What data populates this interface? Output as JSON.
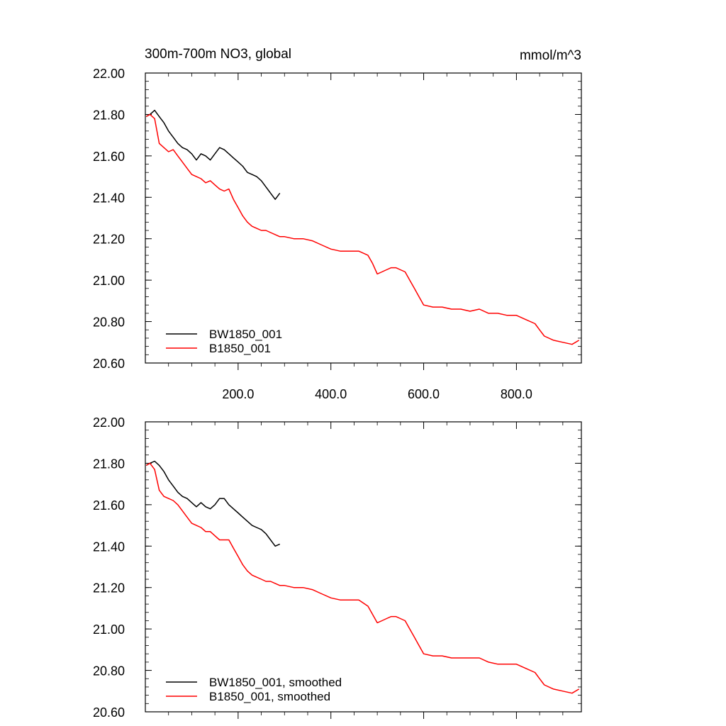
{
  "chart_data": [
    {
      "type": "line",
      "title_left": "300m-700m NO3, global",
      "title_right": "mmol/m^3",
      "xlim": [
        0,
        940
      ],
      "ylim": [
        20.6,
        22.0
      ],
      "yticks": [
        20.6,
        20.8,
        21.0,
        21.2,
        21.4,
        21.6,
        21.8,
        22.0
      ],
      "ytick_labels": [
        "20.60",
        "20.80",
        "21.00",
        "21.20",
        "21.40",
        "21.60",
        "21.80",
        "22.00"
      ],
      "xticks": [
        200,
        400,
        600,
        800
      ],
      "xtick_labels": [
        "200.0",
        "400.0",
        "600.0",
        "800.0"
      ],
      "series": [
        {
          "name": "BW1850_001",
          "color": "#000000",
          "points": [
            [
              2,
              21.79
            ],
            [
              10,
              21.8
            ],
            [
              20,
              21.82
            ],
            [
              30,
              21.79
            ],
            [
              40,
              21.76
            ],
            [
              50,
              21.72
            ],
            [
              60,
              21.69
            ],
            [
              70,
              21.66
            ],
            [
              80,
              21.64
            ],
            [
              90,
              21.63
            ],
            [
              100,
              21.61
            ],
            [
              110,
              21.58
            ],
            [
              120,
              21.61
            ],
            [
              130,
              21.6
            ],
            [
              140,
              21.58
            ],
            [
              150,
              21.61
            ],
            [
              160,
              21.64
            ],
            [
              170,
              21.63
            ],
            [
              180,
              21.61
            ],
            [
              190,
              21.59
            ],
            [
              200,
              21.57
            ],
            [
              210,
              21.55
            ],
            [
              220,
              21.52
            ],
            [
              230,
              21.51
            ],
            [
              240,
              21.5
            ],
            [
              250,
              21.48
            ],
            [
              260,
              21.45
            ],
            [
              270,
              21.42
            ],
            [
              280,
              21.39
            ],
            [
              290,
              21.42
            ]
          ]
        },
        {
          "name": "B1850_001",
          "color": "#ff0000",
          "points": [
            [
              2,
              21.79
            ],
            [
              10,
              21.8
            ],
            [
              20,
              21.78
            ],
            [
              30,
              21.66
            ],
            [
              40,
              21.64
            ],
            [
              50,
              21.62
            ],
            [
              60,
              21.63
            ],
            [
              70,
              21.6
            ],
            [
              80,
              21.57
            ],
            [
              90,
              21.54
            ],
            [
              100,
              21.51
            ],
            [
              110,
              21.5
            ],
            [
              120,
              21.49
            ],
            [
              130,
              21.47
            ],
            [
              140,
              21.48
            ],
            [
              150,
              21.46
            ],
            [
              160,
              21.44
            ],
            [
              170,
              21.43
            ],
            [
              180,
              21.44
            ],
            [
              190,
              21.39
            ],
            [
              200,
              21.35
            ],
            [
              210,
              21.31
            ],
            [
              220,
              21.28
            ],
            [
              230,
              21.26
            ],
            [
              240,
              21.25
            ],
            [
              250,
              21.24
            ],
            [
              260,
              21.24
            ],
            [
              270,
              21.23
            ],
            [
              280,
              21.22
            ],
            [
              290,
              21.21
            ],
            [
              300,
              21.21
            ],
            [
              320,
              21.2
            ],
            [
              340,
              21.2
            ],
            [
              360,
              21.19
            ],
            [
              380,
              21.17
            ],
            [
              400,
              21.15
            ],
            [
              420,
              21.14
            ],
            [
              440,
              21.14
            ],
            [
              460,
              21.14
            ],
            [
              480,
              21.12
            ],
            [
              490,
              21.08
            ],
            [
              500,
              21.03
            ],
            [
              510,
              21.04
            ],
            [
              520,
              21.05
            ],
            [
              530,
              21.06
            ],
            [
              540,
              21.06
            ],
            [
              550,
              21.05
            ],
            [
              560,
              21.04
            ],
            [
              570,
              21.0
            ],
            [
              580,
              20.96
            ],
            [
              590,
              20.92
            ],
            [
              600,
              20.88
            ],
            [
              620,
              20.87
            ],
            [
              640,
              20.87
            ],
            [
              660,
              20.86
            ],
            [
              680,
              20.86
            ],
            [
              700,
              20.85
            ],
            [
              720,
              20.86
            ],
            [
              740,
              20.84
            ],
            [
              760,
              20.84
            ],
            [
              780,
              20.83
            ],
            [
              800,
              20.83
            ],
            [
              820,
              20.81
            ],
            [
              840,
              20.79
            ],
            [
              850,
              20.76
            ],
            [
              860,
              20.73
            ],
            [
              880,
              20.71
            ],
            [
              900,
              20.7
            ],
            [
              920,
              20.69
            ],
            [
              935,
              20.71
            ]
          ]
        }
      ],
      "legend": [
        "BW1850_001",
        "B1850_001"
      ]
    },
    {
      "type": "line",
      "title_left": "",
      "title_right": "",
      "xlim": [
        0,
        940
      ],
      "ylim": [
        20.6,
        22.0
      ],
      "yticks": [
        20.6,
        20.8,
        21.0,
        21.2,
        21.4,
        21.6,
        21.8,
        22.0
      ],
      "ytick_labels": [
        "20.60",
        "20.80",
        "21.00",
        "21.20",
        "21.40",
        "21.60",
        "21.80",
        "22.00"
      ],
      "xticks": [
        200,
        400,
        600,
        800
      ],
      "xtick_labels": [],
      "series": [
        {
          "name": "BW1850_001, smoothed",
          "color": "#000000",
          "points": [
            [
              2,
              21.79
            ],
            [
              10,
              21.8
            ],
            [
              20,
              21.81
            ],
            [
              30,
              21.79
            ],
            [
              40,
              21.76
            ],
            [
              50,
              21.72
            ],
            [
              60,
              21.69
            ],
            [
              70,
              21.66
            ],
            [
              80,
              21.64
            ],
            [
              90,
              21.63
            ],
            [
              100,
              21.61
            ],
            [
              110,
              21.59
            ],
            [
              120,
              21.61
            ],
            [
              130,
              21.59
            ],
            [
              140,
              21.58
            ],
            [
              150,
              21.6
            ],
            [
              160,
              21.63
            ],
            [
              170,
              21.63
            ],
            [
              180,
              21.6
            ],
            [
              190,
              21.58
            ],
            [
              200,
              21.56
            ],
            [
              210,
              21.54
            ],
            [
              220,
              21.52
            ],
            [
              230,
              21.5
            ],
            [
              240,
              21.49
            ],
            [
              250,
              21.48
            ],
            [
              260,
              21.46
            ],
            [
              270,
              21.43
            ],
            [
              280,
              21.4
            ],
            [
              290,
              21.41
            ]
          ]
        },
        {
          "name": "B1850_001, smoothed",
          "color": "#ff0000",
          "points": [
            [
              2,
              21.79
            ],
            [
              10,
              21.8
            ],
            [
              20,
              21.77
            ],
            [
              30,
              21.67
            ],
            [
              40,
              21.64
            ],
            [
              50,
              21.63
            ],
            [
              60,
              21.62
            ],
            [
              70,
              21.6
            ],
            [
              80,
              21.57
            ],
            [
              90,
              21.54
            ],
            [
              100,
              21.51
            ],
            [
              110,
              21.5
            ],
            [
              120,
              21.49
            ],
            [
              130,
              21.47
            ],
            [
              140,
              21.47
            ],
            [
              150,
              21.45
            ],
            [
              160,
              21.43
            ],
            [
              170,
              21.43
            ],
            [
              180,
              21.43
            ],
            [
              190,
              21.39
            ],
            [
              200,
              21.35
            ],
            [
              210,
              21.31
            ],
            [
              220,
              21.28
            ],
            [
              230,
              21.26
            ],
            [
              240,
              21.25
            ],
            [
              250,
              21.24
            ],
            [
              260,
              21.23
            ],
            [
              270,
              21.23
            ],
            [
              280,
              21.22
            ],
            [
              290,
              21.21
            ],
            [
              300,
              21.21
            ],
            [
              320,
              21.2
            ],
            [
              340,
              21.2
            ],
            [
              360,
              21.19
            ],
            [
              380,
              21.17
            ],
            [
              400,
              21.15
            ],
            [
              420,
              21.14
            ],
            [
              440,
              21.14
            ],
            [
              460,
              21.14
            ],
            [
              480,
              21.11
            ],
            [
              490,
              21.07
            ],
            [
              500,
              21.03
            ],
            [
              510,
              21.04
            ],
            [
              520,
              21.05
            ],
            [
              530,
              21.06
            ],
            [
              540,
              21.06
            ],
            [
              550,
              21.05
            ],
            [
              560,
              21.04
            ],
            [
              570,
              21.0
            ],
            [
              580,
              20.96
            ],
            [
              590,
              20.92
            ],
            [
              600,
              20.88
            ],
            [
              620,
              20.87
            ],
            [
              640,
              20.87
            ],
            [
              660,
              20.86
            ],
            [
              680,
              20.86
            ],
            [
              700,
              20.86
            ],
            [
              720,
              20.86
            ],
            [
              740,
              20.84
            ],
            [
              760,
              20.83
            ],
            [
              780,
              20.83
            ],
            [
              800,
              20.83
            ],
            [
              820,
              20.81
            ],
            [
              840,
              20.79
            ],
            [
              850,
              20.76
            ],
            [
              860,
              20.73
            ],
            [
              880,
              20.71
            ],
            [
              900,
              20.7
            ],
            [
              920,
              20.69
            ],
            [
              935,
              20.71
            ]
          ]
        }
      ],
      "legend": [
        "BW1850_001, smoothed",
        "B1850_001, smoothed"
      ]
    }
  ]
}
